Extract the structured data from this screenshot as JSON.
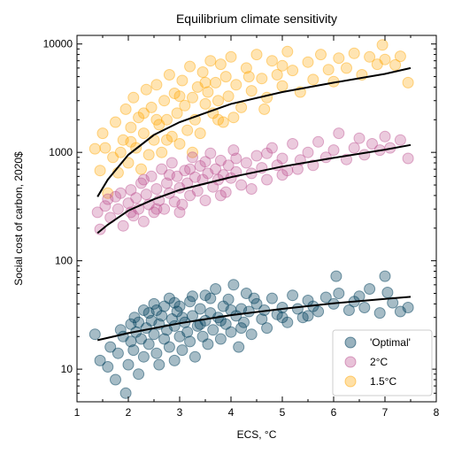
{
  "chart_data": {
    "type": "scatter",
    "title": "Equilibrium climate sensitivity",
    "xlabel": "ECS, °C",
    "ylabel": "Social cost of carbon, 2020$",
    "xlim": [
      1,
      8
    ],
    "ylim": [
      5,
      12000
    ],
    "yscale": "log",
    "x_ticks": [
      1,
      2,
      3,
      4,
      5,
      6,
      7,
      8
    ],
    "x_tick_labels": [
      "1",
      "2",
      "3",
      "4",
      "5",
      "6",
      "7",
      "8"
    ],
    "y_ticks": [
      10,
      100,
      1000,
      10000
    ],
    "y_tick_labels": [
      "10",
      "100",
      "1000",
      "10000"
    ],
    "grid": false,
    "legend_position": "lower right",
    "series": [
      {
        "name": "'Optimal'",
        "color": "#003f5c",
        "alpha": 0.35,
        "fit": {
          "x": [
            1.4,
            2.0,
            3.0,
            4.0,
            5.0,
            6.0,
            7.0,
            7.5
          ],
          "y": [
            18.5,
            21.5,
            26.5,
            31.5,
            36,
            40.5,
            44.5,
            46.5
          ]
        },
        "points": [
          [
            1.35,
            21
          ],
          [
            1.45,
            12
          ],
          [
            1.6,
            10.5
          ],
          [
            1.65,
            16
          ],
          [
            1.75,
            8
          ],
          [
            1.8,
            14
          ],
          [
            1.85,
            23
          ],
          [
            1.9,
            20
          ],
          [
            1.95,
            6
          ],
          [
            2.0,
            11
          ],
          [
            2.05,
            18
          ],
          [
            2.05,
            26
          ],
          [
            2.1,
            15
          ],
          [
            2.12,
            30
          ],
          [
            2.15,
            22
          ],
          [
            2.2,
            9
          ],
          [
            2.25,
            19
          ],
          [
            2.3,
            35
          ],
          [
            2.3,
            13
          ],
          [
            2.35,
            24
          ],
          [
            2.4,
            17
          ],
          [
            2.45,
            28
          ],
          [
            2.5,
            21
          ],
          [
            2.5,
            40
          ],
          [
            2.55,
            14
          ],
          [
            2.6,
            26
          ],
          [
            2.6,
            11
          ],
          [
            2.65,
            31
          ],
          [
            2.7,
            19
          ],
          [
            2.75,
            23
          ],
          [
            2.8,
            45
          ],
          [
            2.8,
            16
          ],
          [
            2.85,
            29
          ],
          [
            2.9,
            12
          ],
          [
            2.9,
            25
          ],
          [
            2.95,
            34
          ],
          [
            3.0,
            20
          ],
          [
            3.0,
            38
          ],
          [
            3.05,
            15
          ],
          [
            3.1,
            27
          ],
          [
            3.15,
            22
          ],
          [
            3.2,
            42
          ],
          [
            3.2,
            18
          ],
          [
            3.25,
            31
          ],
          [
            3.3,
            13
          ],
          [
            3.35,
            25
          ],
          [
            3.4,
            36
          ],
          [
            3.45,
            20
          ],
          [
            3.5,
            48
          ],
          [
            3.5,
            28
          ],
          [
            3.55,
            17
          ],
          [
            3.6,
            33
          ],
          [
            3.65,
            23
          ],
          [
            3.7,
            55
          ],
          [
            3.75,
            30
          ],
          [
            3.8,
            19
          ],
          [
            3.85,
            38
          ],
          [
            3.9,
            26
          ],
          [
            3.95,
            44
          ],
          [
            4.0,
            22
          ],
          [
            4.05,
            60
          ],
          [
            4.1,
            31
          ],
          [
            4.15,
            16
          ],
          [
            4.2,
            36
          ],
          [
            4.25,
            27
          ],
          [
            4.3,
            50
          ],
          [
            4.35,
            34
          ],
          [
            4.4,
            21
          ],
          [
            4.5,
            40
          ],
          [
            4.6,
            29
          ],
          [
            4.7,
            24
          ],
          [
            4.8,
            45
          ],
          [
            4.9,
            32
          ],
          [
            5.0,
            37
          ],
          [
            5.1,
            27
          ],
          [
            5.2,
            48
          ],
          [
            5.3,
            36
          ],
          [
            5.4,
            30
          ],
          [
            5.5,
            43
          ],
          [
            5.6,
            38
          ],
          [
            5.7,
            34
          ],
          [
            5.85,
            46
          ],
          [
            6.0,
            40
          ],
          [
            6.05,
            72
          ],
          [
            6.1,
            50
          ],
          [
            6.3,
            35
          ],
          [
            6.4,
            42
          ],
          [
            6.5,
            47
          ],
          [
            6.6,
            37
          ],
          [
            6.7,
            55
          ],
          [
            6.9,
            33
          ],
          [
            7.0,
            72
          ],
          [
            7.05,
            51
          ],
          [
            7.15,
            41
          ],
          [
            7.3,
            34
          ],
          [
            7.45,
            37
          ],
          [
            2.2,
            27
          ],
          [
            2.4,
            33
          ],
          [
            2.55,
            35
          ],
          [
            2.7,
            38
          ],
          [
            2.9,
            41
          ],
          [
            3.05,
            30
          ],
          [
            3.25,
            47
          ],
          [
            3.4,
            26
          ],
          [
            3.6,
            45
          ],
          [
            3.8,
            28
          ],
          [
            4.0,
            35
          ],
          [
            4.2,
            24
          ],
          [
            4.45,
            45
          ],
          [
            4.65,
            35
          ],
          [
            5.0,
            30
          ],
          [
            5.5,
            31
          ]
        ]
      },
      {
        "name": "2°C",
        "color": "#bc5090",
        "alpha": 0.3,
        "fit": {
          "x": [
            1.4,
            1.6,
            2.0,
            2.5,
            3.0,
            4.0,
            5.0,
            6.0,
            7.0,
            7.5
          ],
          "y": [
            180,
            215,
            290,
            370,
            450,
            590,
            740,
            890,
            1060,
            1170
          ]
        },
        "points": [
          [
            1.4,
            280
          ],
          [
            1.45,
            195
          ],
          [
            1.55,
            320
          ],
          [
            1.65,
            250
          ],
          [
            1.75,
            390
          ],
          [
            1.8,
            300
          ],
          [
            1.9,
            210
          ],
          [
            2.0,
            340
          ],
          [
            2.05,
            450
          ],
          [
            2.1,
            260
          ],
          [
            2.15,
            380
          ],
          [
            2.2,
            300
          ],
          [
            2.25,
            520
          ],
          [
            2.3,
            230
          ],
          [
            2.35,
            410
          ],
          [
            2.4,
            330
          ],
          [
            2.45,
            600
          ],
          [
            2.5,
            280
          ],
          [
            2.55,
            460
          ],
          [
            2.6,
            360
          ],
          [
            2.65,
            700
          ],
          [
            2.7,
            300
          ],
          [
            2.75,
            520
          ],
          [
            2.8,
            420
          ],
          [
            2.85,
            800
          ],
          [
            2.9,
            350
          ],
          [
            2.95,
            600
          ],
          [
            3.0,
            470
          ],
          [
            3.05,
            330
          ],
          [
            3.1,
            680
          ],
          [
            3.15,
            520
          ],
          [
            3.2,
            400
          ],
          [
            3.25,
            900
          ],
          [
            3.3,
            590
          ],
          [
            3.35,
            440
          ],
          [
            3.4,
            750
          ],
          [
            3.45,
            560
          ],
          [
            3.5,
            360
          ],
          [
            3.55,
            640
          ],
          [
            3.6,
            980
          ],
          [
            3.65,
            480
          ],
          [
            3.7,
            700
          ],
          [
            3.75,
            560
          ],
          [
            3.8,
            840
          ],
          [
            3.85,
            620
          ],
          [
            3.9,
            430
          ],
          [
            3.95,
            760
          ],
          [
            4.0,
            580
          ],
          [
            4.05,
            1050
          ],
          [
            4.1,
            660
          ],
          [
            4.2,
            500
          ],
          [
            4.3,
            800
          ],
          [
            4.4,
            640
          ],
          [
            4.5,
            930
          ],
          [
            4.6,
            720
          ],
          [
            4.7,
            560
          ],
          [
            4.8,
            1100
          ],
          [
            4.9,
            760
          ],
          [
            5.0,
            880
          ],
          [
            5.1,
            680
          ],
          [
            5.2,
            1200
          ],
          [
            5.35,
            850
          ],
          [
            5.5,
            1000
          ],
          [
            5.6,
            760
          ],
          [
            5.7,
            1250
          ],
          [
            5.85,
            900
          ],
          [
            6.0,
            1050
          ],
          [
            6.1,
            1500
          ],
          [
            6.25,
            860
          ],
          [
            6.4,
            1100
          ],
          [
            6.5,
            1350
          ],
          [
            6.6,
            950
          ],
          [
            6.75,
            1200
          ],
          [
            6.9,
            1050
          ],
          [
            7.0,
            1400
          ],
          [
            7.1,
            1100
          ],
          [
            7.3,
            1300
          ],
          [
            7.45,
            880
          ],
          [
            1.6,
            370
          ],
          [
            1.85,
            420
          ],
          [
            2.05,
            280
          ],
          [
            2.3,
            560
          ],
          [
            2.55,
            300
          ],
          [
            2.8,
            620
          ],
          [
            3.0,
            280
          ],
          [
            3.2,
            700
          ],
          [
            3.5,
            820
          ],
          [
            3.8,
            400
          ],
          [
            4.1,
            880
          ],
          [
            4.4,
            460
          ],
          [
            4.7,
            980
          ],
          [
            5.0,
            620
          ],
          [
            5.3,
            700
          ]
        ]
      },
      {
        "name": "1.5°C",
        "color": "#ffa600",
        "alpha": 0.3,
        "fit": {
          "x": [
            1.4,
            1.6,
            2.0,
            2.5,
            3.0,
            4.0,
            5.0,
            6.0,
            7.0,
            7.5
          ],
          "y": [
            390,
            560,
            950,
            1450,
            1900,
            2800,
            3600,
            4400,
            5300,
            6000
          ]
        },
        "points": [
          [
            1.35,
            1080
          ],
          [
            1.45,
            680
          ],
          [
            1.5,
            1500
          ],
          [
            1.6,
            420
          ],
          [
            1.7,
            900
          ],
          [
            1.75,
            1900
          ],
          [
            1.8,
            650
          ],
          [
            1.9,
            1300
          ],
          [
            1.95,
            2500
          ],
          [
            2.0,
            800
          ],
          [
            2.05,
            1700
          ],
          [
            2.1,
            3200
          ],
          [
            2.15,
            1100
          ],
          [
            2.2,
            2100
          ],
          [
            2.25,
            700
          ],
          [
            2.3,
            1500
          ],
          [
            2.35,
            3800
          ],
          [
            2.4,
            950
          ],
          [
            2.45,
            2600
          ],
          [
            2.5,
            1300
          ],
          [
            2.55,
            4200
          ],
          [
            2.6,
            1800
          ],
          [
            2.65,
            1000
          ],
          [
            2.7,
            3000
          ],
          [
            2.75,
            2000
          ],
          [
            2.8,
            5200
          ],
          [
            2.85,
            1400
          ],
          [
            2.9,
            3500
          ],
          [
            2.95,
            2300
          ],
          [
            3.0,
            1200
          ],
          [
            3.05,
            4600
          ],
          [
            3.1,
            2700
          ],
          [
            3.15,
            1600
          ],
          [
            3.2,
            6200
          ],
          [
            3.25,
            3200
          ],
          [
            3.3,
            2000
          ],
          [
            3.35,
            4000
          ],
          [
            3.4,
            1500
          ],
          [
            3.45,
            5500
          ],
          [
            3.5,
            2800
          ],
          [
            3.55,
            3600
          ],
          [
            3.6,
            7000
          ],
          [
            3.65,
            2300
          ],
          [
            3.7,
            4400
          ],
          [
            3.75,
            3000
          ],
          [
            3.8,
            6500
          ],
          [
            3.85,
            1900
          ],
          [
            3.9,
            5000
          ],
          [
            3.95,
            3300
          ],
          [
            4.0,
            7600
          ],
          [
            4.1,
            4200
          ],
          [
            4.2,
            2600
          ],
          [
            4.3,
            6000
          ],
          [
            4.4,
            3700
          ],
          [
            4.5,
            8000
          ],
          [
            4.6,
            4800
          ],
          [
            4.7,
            3200
          ],
          [
            4.8,
            7000
          ],
          [
            4.9,
            5200
          ],
          [
            5.0,
            4100
          ],
          [
            5.1,
            8500
          ],
          [
            5.2,
            5700
          ],
          [
            5.35,
            3600
          ],
          [
            5.5,
            6800
          ],
          [
            5.6,
            4700
          ],
          [
            5.75,
            8000
          ],
          [
            5.9,
            5800
          ],
          [
            6.0,
            4500
          ],
          [
            6.1,
            7400
          ],
          [
            6.25,
            6000
          ],
          [
            6.4,
            8200
          ],
          [
            6.55,
            5200
          ],
          [
            6.7,
            7600
          ],
          [
            6.85,
            6500
          ],
          [
            6.95,
            9800
          ],
          [
            7.0,
            7200
          ],
          [
            7.2,
            6400
          ],
          [
            7.3,
            7700
          ],
          [
            7.45,
            4400
          ],
          [
            1.55,
            1100
          ],
          [
            1.85,
            1000
          ],
          [
            2.05,
            1250
          ],
          [
            2.3,
            2300
          ],
          [
            2.55,
            2000
          ],
          [
            2.75,
            1300
          ],
          [
            3.0,
            3300
          ],
          [
            3.25,
            1000
          ],
          [
            3.5,
            4400
          ],
          [
            3.75,
            2000
          ],
          [
            4.05,
            2100
          ],
          [
            4.35,
            5000
          ],
          [
            4.65,
            2500
          ],
          [
            5.0,
            6300
          ]
        ]
      }
    ]
  }
}
